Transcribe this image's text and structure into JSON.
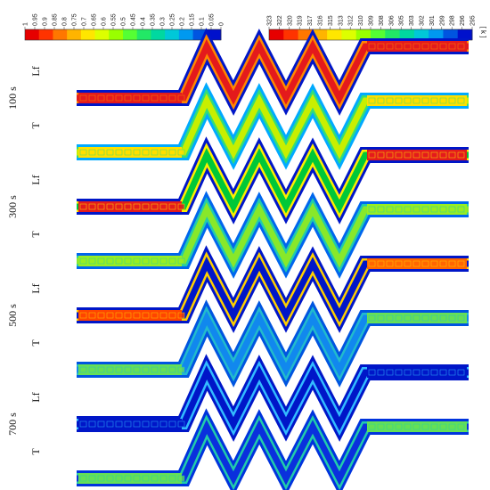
{
  "colorbars": {
    "liquid_fraction": {
      "ticks": [
        "1",
        "0.95",
        "0.9",
        "0.85",
        "0.8",
        "0.75",
        "0.7",
        "0.65",
        "0.6",
        "0.55",
        "0.5",
        "0.45",
        "0.4",
        "0.35",
        "0.3",
        "0.25",
        "0.2",
        "0.15",
        "0.1",
        "0.05",
        "0"
      ]
    },
    "temperature": {
      "ticks": [
        "323",
        "322",
        "320",
        "319",
        "317",
        "316",
        "315",
        "313",
        "312",
        "310",
        "309",
        "308",
        "306",
        "305",
        "303",
        "302",
        "301",
        "299",
        "298",
        "296",
        "295"
      ],
      "unit": "[ k ]"
    }
  },
  "colormap": [
    "#e60000",
    "#ff3300",
    "#ff7700",
    "#ffb400",
    "#ffe600",
    "#ddff00",
    "#99ff00",
    "#55ff33",
    "#22e866",
    "#00d8a0",
    "#00c8d8",
    "#0099f0",
    "#0055e0",
    "#0011cc"
  ],
  "times": [
    {
      "label": "100 s",
      "rows": [
        {
          "label": "Lf",
          "left": "#e41a1c",
          "zig": "#e41a1c",
          "right": "#e41a1c",
          "border": "#0016c8",
          "edge": "#ff8800"
        },
        {
          "label": "T",
          "left": "#ffe000",
          "zig": "#c8ef00",
          "right": "#ffe000",
          "border": "#00aaff",
          "edge": "#33dd77"
        }
      ]
    },
    {
      "label": "300 s",
      "rows": [
        {
          "label": "Lf",
          "left": "#e41a1c",
          "zig": "#00c838",
          "right": "#e41a1c",
          "border": "#0016c8",
          "edge": "#ffee00"
        },
        {
          "label": "T",
          "left": "#99ee22",
          "zig": "#88e82a",
          "right": "#99ee22",
          "border": "#0066ee",
          "edge": "#22ccaa"
        }
      ]
    },
    {
      "label": "500 s",
      "rows": [
        {
          "label": "Lf",
          "left": "#ff4400",
          "zig": "#0016c8",
          "right": "#ff6600",
          "border": "#0016c8",
          "edge": "#ffd000"
        },
        {
          "label": "T",
          "left": "#66e055",
          "zig": "#1188ee",
          "right": "#66e055",
          "border": "#0055e0",
          "edge": "#22bbcc"
        }
      ]
    },
    {
      "label": "700 s",
      "rows": [
        {
          "label": "Lf",
          "left": "#0016c8",
          "zig": "#0016c8",
          "right": "#0016c8",
          "border": "#0016c8",
          "edge": "#33bbff"
        },
        {
          "label": "T",
          "left": "#66e055",
          "zig": "#0a30dd",
          "right": "#66e055",
          "border": "#0033dd",
          "edge": "#22ccaa"
        }
      ]
    }
  ]
}
